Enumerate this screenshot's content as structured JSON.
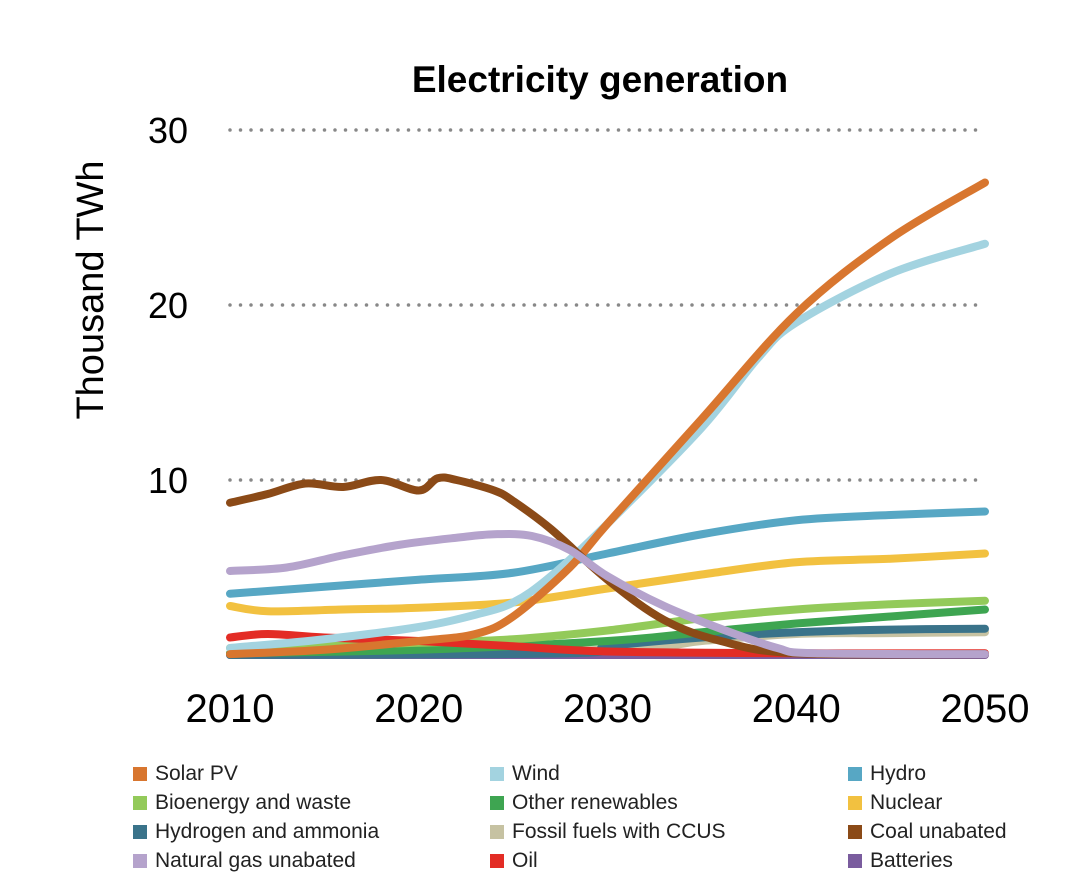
{
  "chart_data": {
    "type": "line",
    "title": "Electricity generation",
    "xlabel": "",
    "ylabel": "Thousand TWh",
    "xlim": [
      2010,
      2050
    ],
    "ylim": [
      0,
      30
    ],
    "xticks": [
      "2010",
      "2020",
      "2030",
      "2040",
      "2050"
    ],
    "yticks": [
      "10",
      "20",
      "30"
    ],
    "grid": "horizontal dotted at 10, 20, 30",
    "legend_position": "bottom",
    "series": [
      {
        "name": "Solar PV",
        "color": "#D8762F",
        "x": [
          2010,
          2015,
          2020,
          2023,
          2025,
          2028,
          2030,
          2035,
          2040,
          2045,
          2050
        ],
        "y": [
          0.05,
          0.3,
          0.8,
          1.2,
          2.2,
          5.0,
          7.5,
          13.5,
          19.5,
          23.8,
          27.0
        ]
      },
      {
        "name": "Wind",
        "color": "#A3D3E0",
        "x": [
          2010,
          2015,
          2020,
          2023,
          2025,
          2027,
          2030,
          2035,
          2038,
          2040,
          2045,
          2050
        ],
        "y": [
          0.4,
          0.9,
          1.6,
          2.3,
          3.0,
          4.5,
          7.5,
          13.0,
          17.0,
          19.0,
          21.8,
          23.5
        ]
      },
      {
        "name": "Hydro",
        "color": "#57A7C4",
        "x": [
          2010,
          2015,
          2020,
          2025,
          2030,
          2035,
          2040,
          2045,
          2050
        ],
        "y": [
          3.5,
          3.9,
          4.3,
          4.7,
          5.8,
          6.9,
          7.7,
          8.0,
          8.2
        ]
      },
      {
        "name": "Bioenergy and waste",
        "color": "#93CA5A",
        "x": [
          2010,
          2020,
          2025,
          2030,
          2035,
          2040,
          2045,
          2050
        ],
        "y": [
          0.4,
          0.7,
          0.9,
          1.4,
          2.1,
          2.6,
          2.9,
          3.1
        ]
      },
      {
        "name": "Other renewables",
        "color": "#3EA551",
        "x": [
          2010,
          2020,
          2030,
          2035,
          2040,
          2045,
          2050
        ],
        "y": [
          0.1,
          0.3,
          0.8,
          1.3,
          1.8,
          2.2,
          2.6
        ]
      },
      {
        "name": "Nuclear",
        "color": "#F2C140",
        "x": [
          2010,
          2012,
          2016,
          2020,
          2025,
          2030,
          2035,
          2040,
          2045,
          2050
        ],
        "y": [
          2.8,
          2.5,
          2.6,
          2.7,
          3.0,
          3.8,
          4.6,
          5.3,
          5.5,
          5.8
        ]
      },
      {
        "name": "Hydrogen and ammonia",
        "color": "#3A738A",
        "x": [
          2010,
          2028,
          2030,
          2035,
          2040,
          2045,
          2050
        ],
        "y": [
          0,
          0.1,
          0.5,
          1.0,
          1.3,
          1.45,
          1.5
        ]
      },
      {
        "name": "Fossil fuels with CCUS",
        "color": "#C6C2A2",
        "x": [
          2010,
          2030,
          2035,
          2040,
          2045,
          2050
        ],
        "y": [
          0.1,
          0.3,
          0.8,
          1.2,
          1.25,
          1.3
        ]
      },
      {
        "name": "Coal unabated",
        "color": "#8B4A17",
        "x": [
          2010,
          2012,
          2014,
          2016,
          2018,
          2020,
          2021,
          2022,
          2024,
          2025,
          2027,
          2030,
          2033,
          2036,
          2040,
          2050
        ],
        "y": [
          8.7,
          9.2,
          9.8,
          9.6,
          10.0,
          9.4,
          10.1,
          10.0,
          9.4,
          8.8,
          7.2,
          4.3,
          2.0,
          0.8,
          0.1,
          0.05
        ]
      },
      {
        "name": "Natural gas unabated",
        "color": "#B5A3CC",
        "x": [
          2010,
          2013,
          2016,
          2019,
          2022,
          2024,
          2026,
          2028,
          2030,
          2033,
          2036,
          2039,
          2041,
          2050
        ],
        "y": [
          4.8,
          5.0,
          5.7,
          6.3,
          6.7,
          6.9,
          6.8,
          6.0,
          4.5,
          2.8,
          1.5,
          0.4,
          0.1,
          0.05
        ]
      },
      {
        "name": "Oil",
        "color": "#E32C25",
        "x": [
          2010,
          2012,
          2015,
          2020,
          2025,
          2030,
          2040,
          2050
        ],
        "y": [
          1.0,
          1.2,
          1.0,
          0.8,
          0.5,
          0.2,
          0.1,
          0.1
        ]
      },
      {
        "name": "Batteries",
        "color": "#7A5C9E",
        "x": [
          2010,
          2050
        ],
        "y": [
          0,
          0
        ]
      }
    ]
  }
}
